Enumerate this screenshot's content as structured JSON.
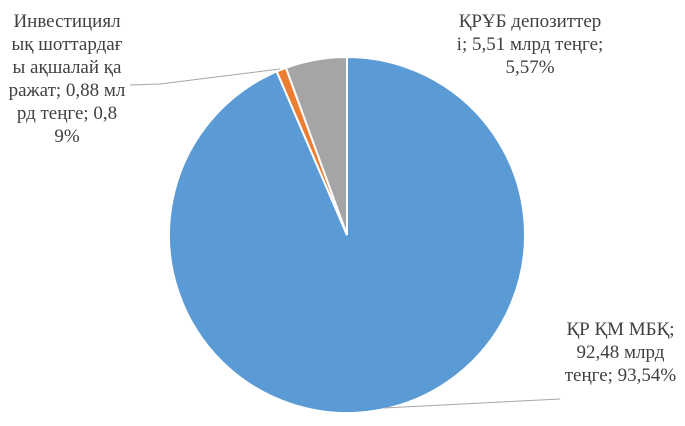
{
  "chart_data": {
    "type": "pie",
    "categories": [
      "ҚР ҚМ МБҚ",
      "Инвестициялық шоттардағы ақшалай қаражат",
      "ҚРҰБ депозиттері"
    ],
    "values": [
      93.54,
      0.89,
      5.57
    ],
    "value_labels": [
      "92,48 млрд теңге; 93,54%",
      "0,88 млрд теңге; 0,89%",
      "5,51 млрд теңге; 5,57%"
    ],
    "colors": [
      "#5b9bd5",
      "#ed7d31",
      "#a5a5a5"
    ]
  }
}
